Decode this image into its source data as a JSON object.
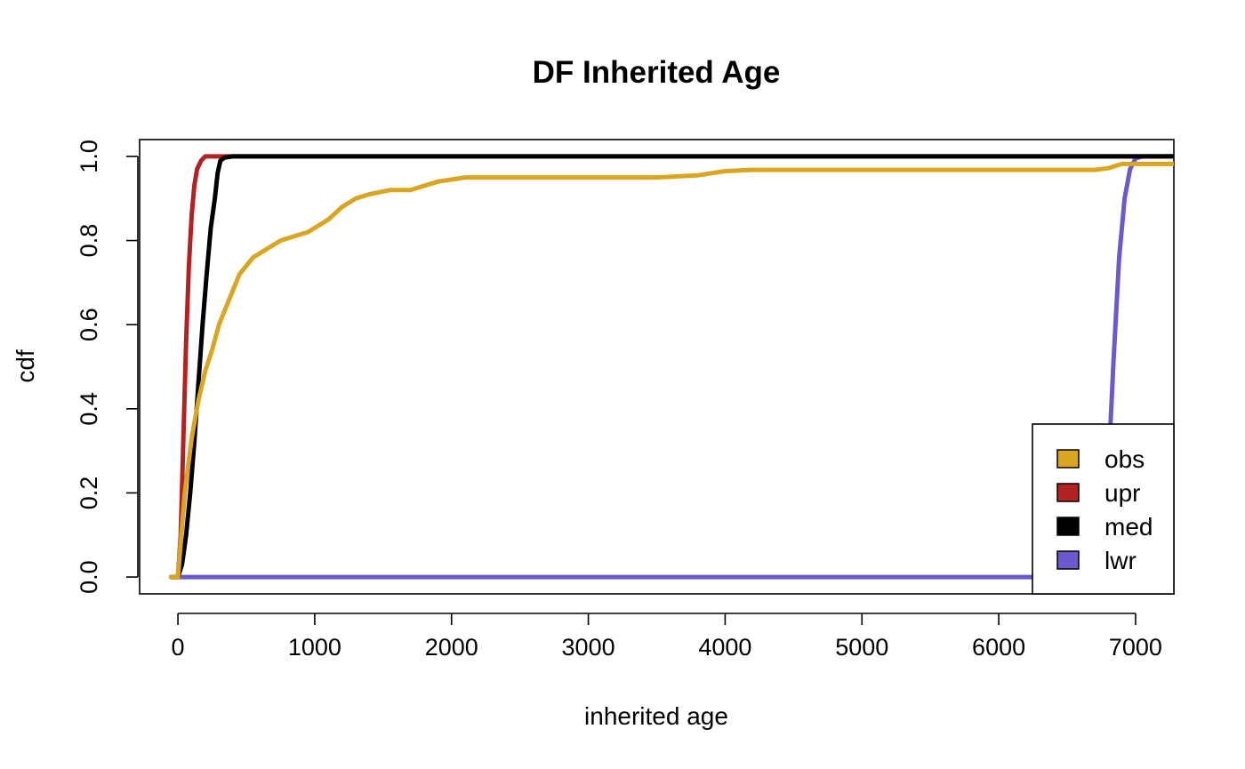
{
  "chart_data": {
    "type": "line",
    "title": "DF Inherited Age",
    "xlabel": "inherited age",
    "ylabel": "cdf",
    "xlim": [
      -280,
      7280
    ],
    "ylim": [
      -0.04,
      1.04
    ],
    "xticks": [
      0,
      1000,
      2000,
      3000,
      4000,
      5000,
      6000,
      7000
    ],
    "xtick_labels": [
      "0",
      "1000",
      "2000",
      "3000",
      "4000",
      "5000",
      "6000",
      "7000"
    ],
    "yticks": [
      0.0,
      0.2,
      0.4,
      0.6,
      0.8,
      1.0
    ],
    "ytick_labels": [
      "0.0",
      "0.2",
      "0.4",
      "0.6",
      "0.8",
      "1.0"
    ],
    "grid": false,
    "legend_position": "bottom-right",
    "series": [
      {
        "name": "obs",
        "color": "#daa520",
        "points": [
          [
            -50,
            0.0
          ],
          [
            0,
            0.0
          ],
          [
            50,
            0.2
          ],
          [
            100,
            0.33
          ],
          [
            150,
            0.42
          ],
          [
            200,
            0.49
          ],
          [
            250,
            0.54
          ],
          [
            300,
            0.6
          ],
          [
            350,
            0.64
          ],
          [
            400,
            0.68
          ],
          [
            450,
            0.72
          ],
          [
            550,
            0.76
          ],
          [
            650,
            0.78
          ],
          [
            750,
            0.8
          ],
          [
            850,
            0.81
          ],
          [
            950,
            0.82
          ],
          [
            1100,
            0.85
          ],
          [
            1200,
            0.88
          ],
          [
            1300,
            0.9
          ],
          [
            1400,
            0.91
          ],
          [
            1550,
            0.92
          ],
          [
            1700,
            0.92
          ],
          [
            1800,
            0.93
          ],
          [
            1900,
            0.94
          ],
          [
            2100,
            0.95
          ],
          [
            2500,
            0.95
          ],
          [
            3000,
            0.95
          ],
          [
            3500,
            0.95
          ],
          [
            3800,
            0.955
          ],
          [
            4000,
            0.965
          ],
          [
            4200,
            0.968
          ],
          [
            5000,
            0.968
          ],
          [
            6000,
            0.968
          ],
          [
            6700,
            0.968
          ],
          [
            6800,
            0.972
          ],
          [
            6900,
            0.982
          ],
          [
            7280,
            0.982
          ]
        ]
      },
      {
        "name": "upr",
        "color": "#b22222",
        "points": [
          [
            -50,
            0.0
          ],
          [
            0,
            0.0
          ],
          [
            20,
            0.1
          ],
          [
            40,
            0.33
          ],
          [
            60,
            0.56
          ],
          [
            80,
            0.74
          ],
          [
            100,
            0.86
          ],
          [
            120,
            0.93
          ],
          [
            140,
            0.97
          ],
          [
            170,
            0.99
          ],
          [
            200,
            1.0
          ],
          [
            300,
            1.0
          ],
          [
            7280,
            1.0
          ]
        ]
      },
      {
        "name": "med",
        "color": "#000000",
        "points": [
          [
            -50,
            0.0
          ],
          [
            0,
            0.0
          ],
          [
            30,
            0.03
          ],
          [
            60,
            0.1
          ],
          [
            90,
            0.2
          ],
          [
            120,
            0.32
          ],
          [
            150,
            0.46
          ],
          [
            180,
            0.6
          ],
          [
            210,
            0.72
          ],
          [
            240,
            0.83
          ],
          [
            270,
            0.9
          ],
          [
            290,
            0.96
          ],
          [
            310,
            0.99
          ],
          [
            340,
            0.997
          ],
          [
            400,
            1.0
          ],
          [
            7280,
            1.0
          ]
        ]
      },
      {
        "name": "lwr",
        "color": "#6a5acd",
        "points": [
          [
            -50,
            0.0
          ],
          [
            6700,
            0.0
          ],
          [
            6760,
            0.05
          ],
          [
            6800,
            0.25
          ],
          [
            6840,
            0.52
          ],
          [
            6880,
            0.76
          ],
          [
            6920,
            0.9
          ],
          [
            6960,
            0.97
          ],
          [
            7000,
            0.995
          ],
          [
            7050,
            1.0
          ],
          [
            7280,
            1.0
          ]
        ]
      }
    ]
  }
}
